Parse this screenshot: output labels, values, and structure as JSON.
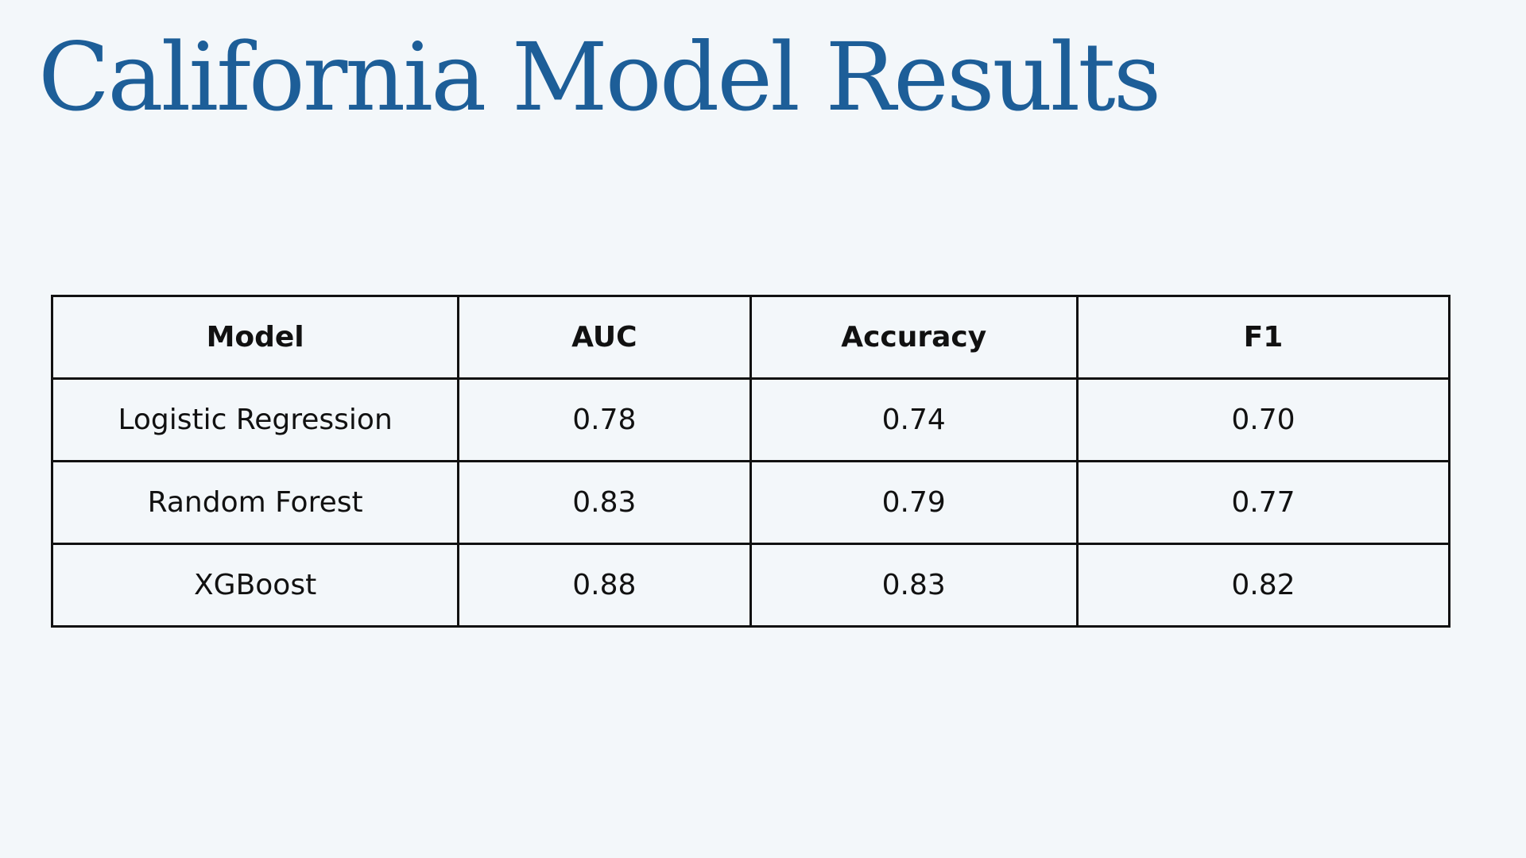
{
  "title": "California Model Results",
  "table": {
    "header": [
      "Model",
      "AUC",
      "Accuracy",
      "F1"
    ],
    "rows": [
      [
        "Logistic Regression",
        "0.78",
        "0.74",
        "0.70"
      ],
      [
        "Random Forest",
        "0.83",
        "0.79",
        "0.77"
      ],
      [
        "XGBoost",
        "0.88",
        "0.83",
        "0.82"
      ]
    ]
  }
}
